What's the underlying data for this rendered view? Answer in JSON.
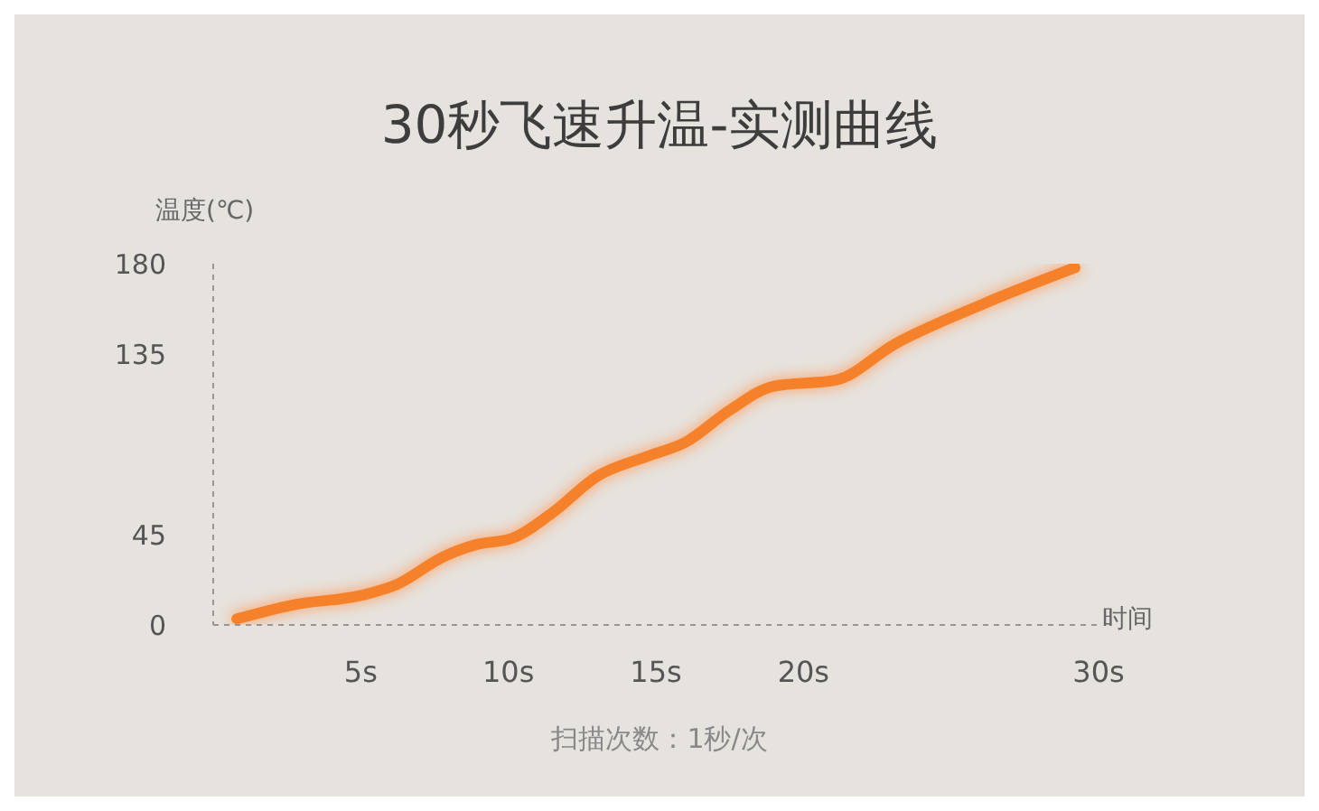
{
  "chart_data": {
    "type": "line",
    "title": "30秒飞速升温-实测曲线",
    "xlabel": "时间",
    "ylabel": "温度(℃)",
    "annotations": [
      "扫描次数：1秒/次"
    ],
    "x": [
      0.8,
      2.7,
      5.1,
      6.2,
      7.8,
      8.9,
      10.1,
      11.5,
      13,
      14.7,
      16,
      17.5,
      19,
      21.1,
      23.1,
      26.1,
      29.2
    ],
    "series": [
      {
        "color": "#f5822a",
        "values": [
          3,
          10,
          15,
          20,
          34,
          40,
          43,
          56,
          74,
          84,
          91,
          107,
          119,
          122,
          140,
          160,
          178
        ]
      }
    ],
    "xlim": [
      0,
      30
    ],
    "xticks": [
      {
        "value": 5,
        "label": "5s"
      },
      {
        "value": 10,
        "label": "10s"
      },
      {
        "value": 15,
        "label": "15s"
      },
      {
        "value": 20,
        "label": "20s"
      },
      {
        "value": 30,
        "label": "30s"
      }
    ],
    "ylim": [
      0,
      180
    ],
    "yticks": [
      0,
      45,
      135,
      180
    ],
    "grid": false,
    "legend": false,
    "marker": "none",
    "line_style": "solid"
  }
}
